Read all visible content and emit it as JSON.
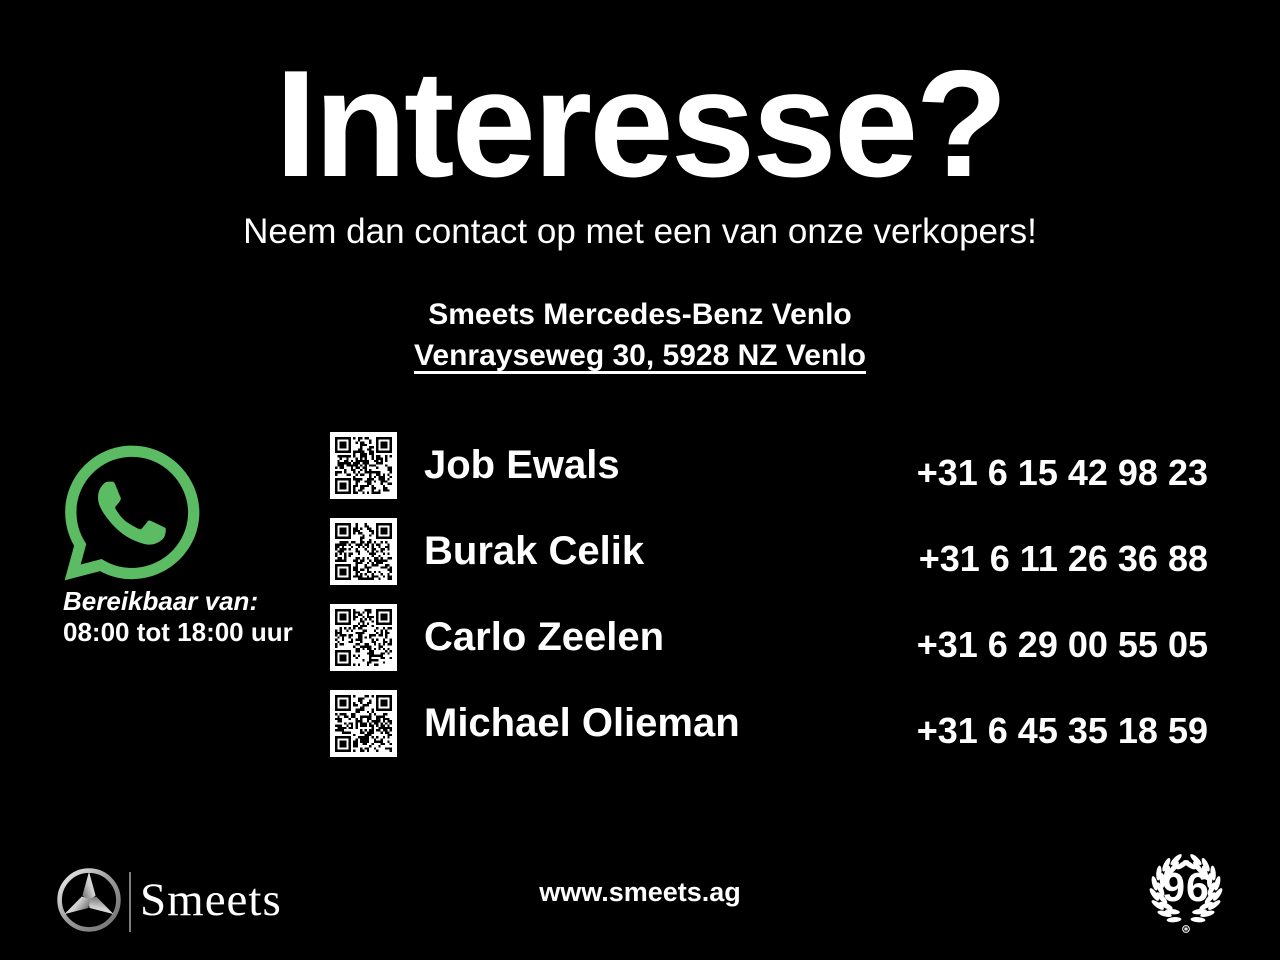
{
  "colors": {
    "background": "#000000",
    "text": "#ffffff",
    "whatsapp_green": "#5cbc63",
    "silver_light": "#f2f2f2",
    "silver_dark": "#6e6e6e"
  },
  "header": {
    "title": "Interesse?",
    "subtitle": "Neem dan contact op met een van onze verkopers!"
  },
  "dealer": {
    "name": "Smeets Mercedes-Benz Venlo",
    "address": "Venrayseweg 30, 5928 NZ Venlo"
  },
  "availability": {
    "label": "Bereikbaar van:",
    "hours": "08:00 tot 18:00 uur"
  },
  "contacts": [
    {
      "name": "Job Ewals",
      "phone": "+31 6 15 42 98 23"
    },
    {
      "name": "Burak Celik",
      "phone": "+31 6 11 26 36 88"
    },
    {
      "name": "Carlo Zeelen",
      "phone": "+31 6 29 00 55 05"
    },
    {
      "name": "Michael Olieman",
      "phone": "+31 6 45 35 18 59"
    }
  ],
  "footer": {
    "brand": "Smeets",
    "website": "www.smeets.ag",
    "badge_number": "96"
  }
}
